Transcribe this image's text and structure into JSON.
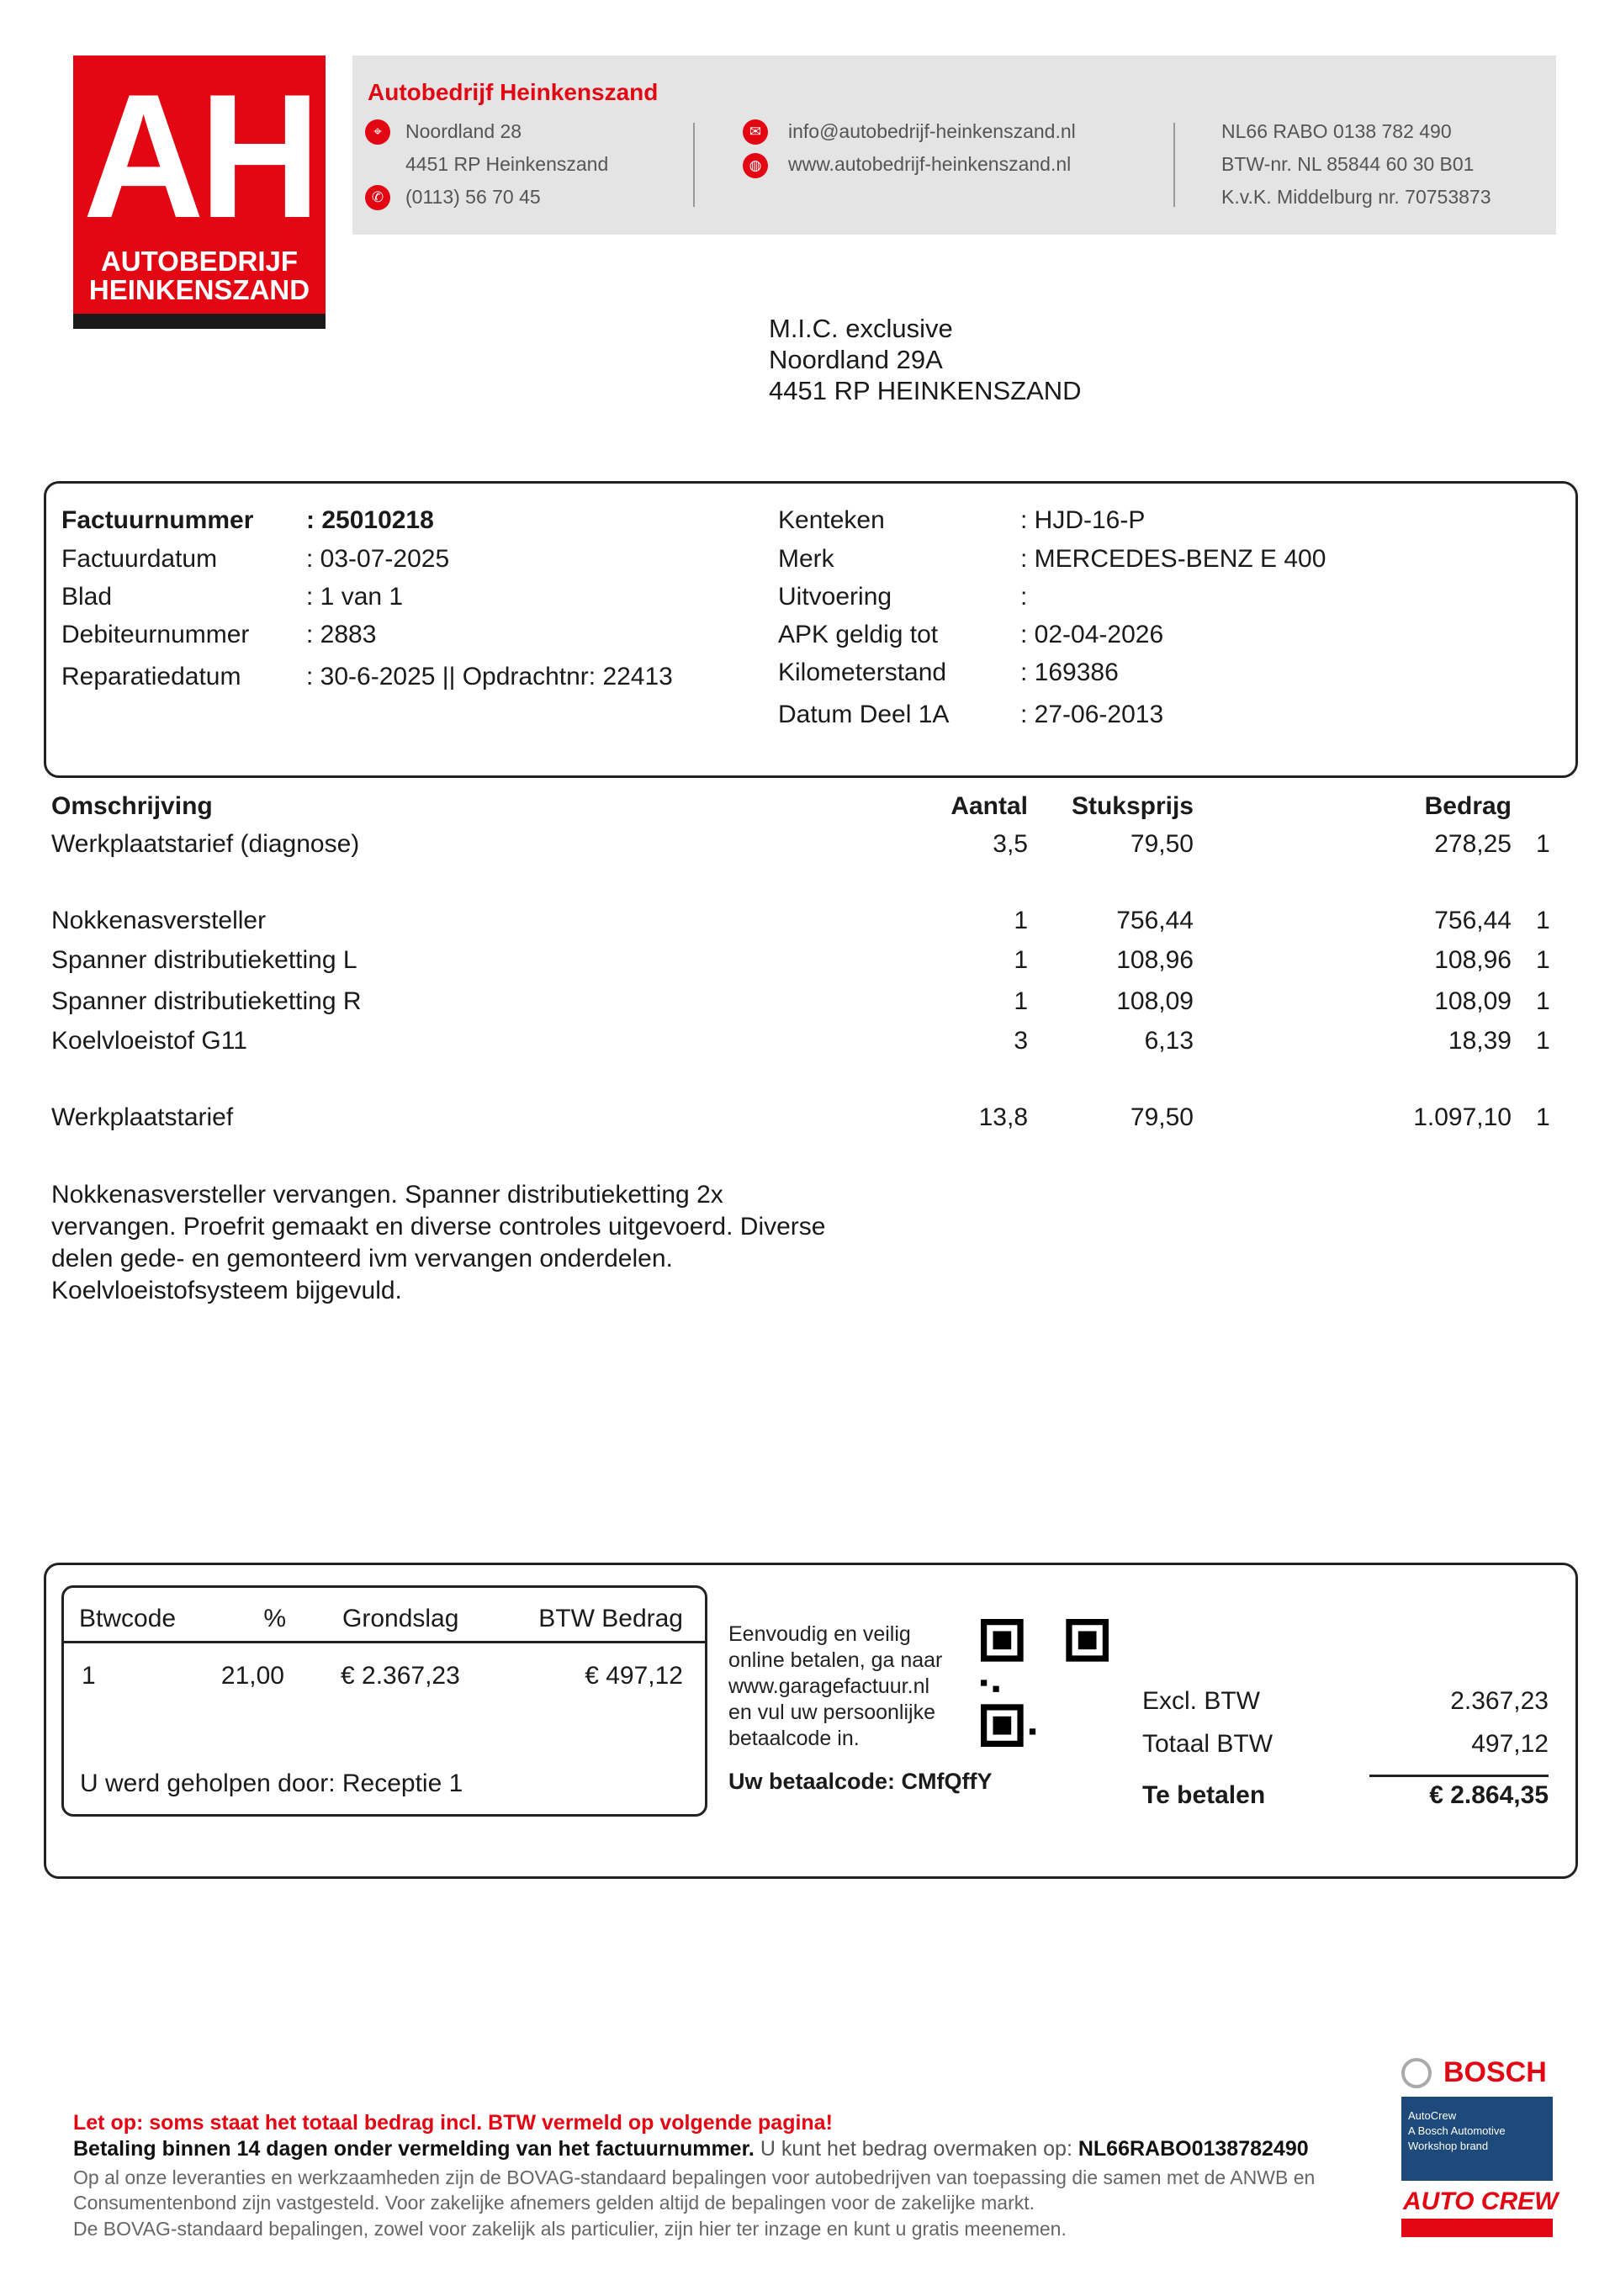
{
  "logo": {
    "letters": "AH",
    "line1": "AUTOBEDRIJF",
    "line2": "HEINKENSZAND"
  },
  "company": {
    "name": "Autobedrijf Heinkenszand",
    "street": "Noordland 28",
    "city": "4451 RP Heinkenszand",
    "phone": "(0113) 56 70 45",
    "email": "info@autobedrijf-heinkenszand.nl",
    "website": "www.autobedrijf-heinkenszand.nl",
    "iban": "NL66 RABO 0138 782 490",
    "btw": "BTW-nr. NL 85844 60 30 B01",
    "kvk": "K.v.K. Middelburg nr. 70753873"
  },
  "recipient": {
    "name": "M.I.C. exclusive",
    "street": "Noordland 29A",
    "city": "4451 RP HEINKENSZAND"
  },
  "invoice_info": {
    "left": [
      {
        "label": "Factuurnummer",
        "value": ": 25010218"
      },
      {
        "label": "Factuurdatum",
        "value": ": 03-07-2025"
      },
      {
        "label": "Blad",
        "value": ": 1 van 1"
      },
      {
        "label": "Debiteurnummer",
        "value": ": 2883"
      },
      {
        "label": "Reparatiedatum",
        "value": ": 30-6-2025 || Opdrachtnr: 22413"
      }
    ],
    "right": [
      {
        "label": "Kenteken",
        "value": ": HJD-16-P"
      },
      {
        "label": "Merk",
        "value": ": MERCEDES-BENZ E 400"
      },
      {
        "label": "Uitvoering",
        "value": ":"
      },
      {
        "label": "APK geldig tot",
        "value": ": 02-04-2026"
      },
      {
        "label": "Kilometerstand",
        "value": ": 169386"
      },
      {
        "label": "Datum Deel 1A",
        "value": ": 27-06-2013"
      }
    ]
  },
  "lines": {
    "headers": {
      "desc": "Omschrijving",
      "qty": "Aantal",
      "unit": "Stuksprijs",
      "amount": "Bedrag"
    },
    "rows": [
      {
        "desc": "Werkplaatstarief (diagnose)",
        "qty": "3,5",
        "unit": "79,50",
        "amount": "278,25",
        "code": "1"
      },
      {
        "desc": "Nokkenasversteller",
        "qty": "1",
        "unit": "756,44",
        "amount": "756,44",
        "code": "1"
      },
      {
        "desc": "Spanner distributieketting L",
        "qty": "1",
        "unit": "108,96",
        "amount": "108,96",
        "code": "1"
      },
      {
        "desc": "Spanner distributieketting R",
        "qty": "1",
        "unit": "108,09",
        "amount": "108,09",
        "code": "1"
      },
      {
        "desc": "Koelvloeistof G11",
        "qty": "3",
        "unit": "6,13",
        "amount": "18,39",
        "code": "1"
      },
      {
        "desc": "Werkplaatstarief",
        "qty": "13,8",
        "unit": "79,50",
        "amount": "1.097,10",
        "code": "1"
      }
    ]
  },
  "note": [
    "Nokkenasversteller vervangen. Spanner distributieketting 2x",
    "vervangen. Proefrit gemaakt en diverse controles uitgevoerd. Diverse",
    "delen gede- en gemonteerd ivm vervangen onderdelen.",
    "Koelvloeistofsysteem bijgevuld."
  ],
  "btw_table": {
    "headers": [
      "Btwcode",
      "%",
      "Grondslag",
      "BTW Bedrag"
    ],
    "row": [
      "1",
      "21,00",
      "€ 2.367,23",
      "€ 497,12"
    ],
    "helped_by": "U werd geholpen door: Receptie 1"
  },
  "payment": {
    "text": [
      "Eenvoudig en veilig",
      "online betalen, ga naar",
      "www.garagefactuur.nl",
      "en vul uw persoonlijke",
      "betaalcode in."
    ],
    "code": "Uw betaalcode: CMfQffY"
  },
  "totals": {
    "excl_label": "Excl. BTW",
    "excl": "2.367,23",
    "btw_label": "Totaal BTW",
    "btw": "497,12",
    "pay_label": "Te betalen",
    "pay": "€ 2.864,35"
  },
  "footer": {
    "warning": "Let op: soms staat het totaal bedrag incl. BTW vermeld op volgende pagina!",
    "payment_bold": "Betaling binnen 14 dagen onder vermelding van het factuurnummer.",
    "payment_normal": " U kunt het bedrag overmaken op: ",
    "payment_iban": "NL66RABO0138782490",
    "terms": [
      "Op al onze leveranties en werkzaamheden zijn de BOVAG-standaard bepalingen voor autobedrijven van toepassing die samen met de ANWB en",
      "Consumentenbond zijn vastgesteld. Voor zakelijke afnemers gelden altijd de bepalingen voor de zakelijke markt.",
      "De BOVAG-standaard bepalingen, zowel voor zakelijk als particulier, zijn hier ter inzage en kunt u gratis meenemen."
    ]
  },
  "partners": {
    "bosch": "BOSCH",
    "autocrew_text": [
      "AutoCrew",
      "A Bosch Automotive",
      "Workshop brand"
    ],
    "autocrew": "AUTO CREW"
  },
  "colors": {
    "brand_red": "#e30613",
    "header_gray": "#e4e4e4",
    "autocrew_blue": "#1d4a7a"
  }
}
